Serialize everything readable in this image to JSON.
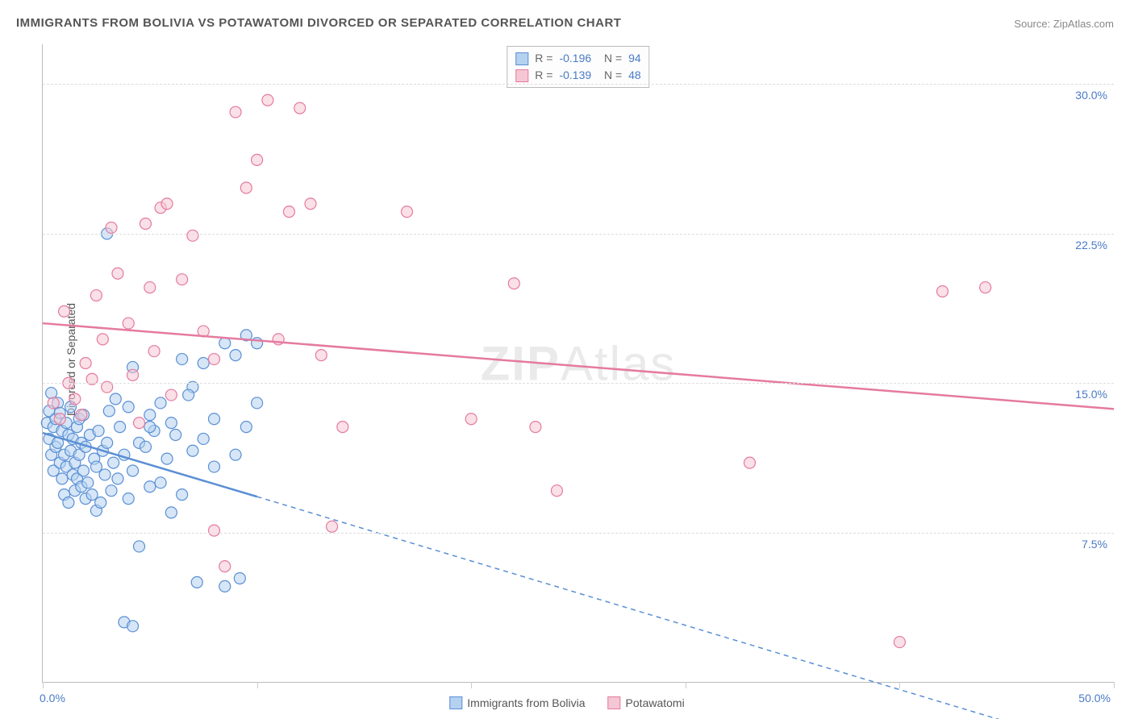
{
  "title": "IMMIGRANTS FROM BOLIVIA VS POTAWATOMI DIVORCED OR SEPARATED CORRELATION CHART",
  "source_label": "Source:",
  "source_name": "ZipAtlas.com",
  "watermark_a": "ZIP",
  "watermark_b": "Atlas",
  "ylabel": "Divorced or Separated",
  "chart": {
    "type": "scatter",
    "xlim": [
      0,
      50
    ],
    "ylim": [
      0,
      32
    ],
    "x_ticks": [
      0,
      10,
      20,
      30,
      40,
      50
    ],
    "y_ticks": [
      7.5,
      15.0,
      22.5,
      30.0
    ],
    "x_tick_labels": {
      "0": "0.0%",
      "50": "50.0%"
    },
    "y_tick_labels": {
      "7.5": "7.5%",
      "15.0": "15.0%",
      "22.5": "22.5%",
      "30.0": "30.0%"
    },
    "grid_color": "#dddddd",
    "axis_color": "#bbbbbb",
    "tick_text_color": "#4a7ac7",
    "background_color": "#ffffff",
    "marker_radius": 7,
    "marker_opacity": 0.55,
    "line_width": 2.5,
    "series": [
      {
        "key": "bolivia",
        "label": "Immigrants from Bolivia",
        "color_fill": "#b4d1f0",
        "color_stroke": "#5a8fd4",
        "R": "-0.196",
        "N": "94",
        "trend": {
          "x1": 0,
          "y1": 12.5,
          "x2_solid": 10,
          "y2_solid": 9.3,
          "x2_dash": 45,
          "y2_dash": -2.0
        },
        "points": [
          [
            0.2,
            13.0
          ],
          [
            0.3,
            12.2
          ],
          [
            0.3,
            13.6
          ],
          [
            0.4,
            11.4
          ],
          [
            0.4,
            14.5
          ],
          [
            0.5,
            12.8
          ],
          [
            0.5,
            10.6
          ],
          [
            0.6,
            13.2
          ],
          [
            0.6,
            11.8
          ],
          [
            0.7,
            14.0
          ],
          [
            0.7,
            12.0
          ],
          [
            0.8,
            11.0
          ],
          [
            0.8,
            13.5
          ],
          [
            0.9,
            10.2
          ],
          [
            0.9,
            12.6
          ],
          [
            1.0,
            11.4
          ],
          [
            1.0,
            9.4
          ],
          [
            1.1,
            13.0
          ],
          [
            1.1,
            10.8
          ],
          [
            1.2,
            12.4
          ],
          [
            1.2,
            9.0
          ],
          [
            1.3,
            11.6
          ],
          [
            1.3,
            13.8
          ],
          [
            1.4,
            10.4
          ],
          [
            1.4,
            12.2
          ],
          [
            1.5,
            11.0
          ],
          [
            1.5,
            9.6
          ],
          [
            1.6,
            12.8
          ],
          [
            1.6,
            10.2
          ],
          [
            1.7,
            13.2
          ],
          [
            1.7,
            11.4
          ],
          [
            1.8,
            9.8
          ],
          [
            1.8,
            12.0
          ],
          [
            1.9,
            10.6
          ],
          [
            1.9,
            13.4
          ],
          [
            2.0,
            11.8
          ],
          [
            2.0,
            9.2
          ],
          [
            2.1,
            10.0
          ],
          [
            2.2,
            12.4
          ],
          [
            2.3,
            9.4
          ],
          [
            2.4,
            11.2
          ],
          [
            2.5,
            10.8
          ],
          [
            2.5,
            8.6
          ],
          [
            2.6,
            12.6
          ],
          [
            2.7,
            9.0
          ],
          [
            2.8,
            11.6
          ],
          [
            2.9,
            10.4
          ],
          [
            3.0,
            22.5
          ],
          [
            3.0,
            12.0
          ],
          [
            3.1,
            13.6
          ],
          [
            3.2,
            9.6
          ],
          [
            3.3,
            11.0
          ],
          [
            3.4,
            14.2
          ],
          [
            3.5,
            10.2
          ],
          [
            3.6,
            12.8
          ],
          [
            3.8,
            11.4
          ],
          [
            4.0,
            13.8
          ],
          [
            4.0,
            9.2
          ],
          [
            4.2,
            15.8
          ],
          [
            4.2,
            10.6
          ],
          [
            4.5,
            12.0
          ],
          [
            4.5,
            6.8
          ],
          [
            4.8,
            11.8
          ],
          [
            5.0,
            13.4
          ],
          [
            5.0,
            9.8
          ],
          [
            5.2,
            12.6
          ],
          [
            5.5,
            14.0
          ],
          [
            5.5,
            10.0
          ],
          [
            5.8,
            11.2
          ],
          [
            6.0,
            13.0
          ],
          [
            6.0,
            8.5
          ],
          [
            6.2,
            12.4
          ],
          [
            6.5,
            16.2
          ],
          [
            6.5,
            9.4
          ],
          [
            7.0,
            11.6
          ],
          [
            7.0,
            14.8
          ],
          [
            7.2,
            5.0
          ],
          [
            7.5,
            12.2
          ],
          [
            7.5,
            16.0
          ],
          [
            8.0,
            13.2
          ],
          [
            8.0,
            10.8
          ],
          [
            8.5,
            17.0
          ],
          [
            8.5,
            4.8
          ],
          [
            9.0,
            11.4
          ],
          [
            9.0,
            16.4
          ],
          [
            9.2,
            5.2
          ],
          [
            9.5,
            17.4
          ],
          [
            9.5,
            12.8
          ],
          [
            10.0,
            17.0
          ],
          [
            10.0,
            14.0
          ],
          [
            3.8,
            3.0
          ],
          [
            5.0,
            12.8
          ],
          [
            6.8,
            14.4
          ],
          [
            4.2,
            2.8
          ]
        ]
      },
      {
        "key": "potawatomi",
        "label": "Potawatomi",
        "color_fill": "#f5c6d4",
        "color_stroke": "#e57aa0",
        "R": "-0.139",
        "N": "48",
        "trend": {
          "x1": 0,
          "y1": 18.0,
          "x2_solid": 50,
          "y2_solid": 13.7,
          "x2_dash": 50,
          "y2_dash": 13.7
        },
        "points": [
          [
            0.5,
            14.0
          ],
          [
            0.8,
            13.2
          ],
          [
            1.0,
            18.6
          ],
          [
            1.2,
            15.0
          ],
          [
            1.5,
            14.2
          ],
          [
            1.8,
            13.4
          ],
          [
            2.0,
            16.0
          ],
          [
            2.3,
            15.2
          ],
          [
            2.5,
            19.4
          ],
          [
            2.8,
            17.2
          ],
          [
            3.0,
            14.8
          ],
          [
            3.2,
            22.8
          ],
          [
            3.5,
            20.5
          ],
          [
            4.0,
            18.0
          ],
          [
            4.2,
            15.4
          ],
          [
            4.5,
            13.0
          ],
          [
            4.8,
            23.0
          ],
          [
            5.0,
            19.8
          ],
          [
            5.2,
            16.6
          ],
          [
            5.5,
            23.8
          ],
          [
            5.8,
            24.0
          ],
          [
            6.0,
            14.4
          ],
          [
            6.5,
            20.2
          ],
          [
            7.0,
            22.4
          ],
          [
            7.5,
            17.6
          ],
          [
            8.0,
            16.2
          ],
          [
            8.5,
            5.8
          ],
          [
            9.0,
            28.6
          ],
          [
            9.5,
            24.8
          ],
          [
            10.0,
            26.2
          ],
          [
            10.5,
            29.2
          ],
          [
            11.0,
            17.2
          ],
          [
            11.5,
            23.6
          ],
          [
            12.0,
            28.8
          ],
          [
            12.5,
            24.0
          ],
          [
            13.0,
            16.4
          ],
          [
            13.5,
            7.8
          ],
          [
            14.0,
            12.8
          ],
          [
            17.0,
            23.6
          ],
          [
            20.0,
            13.2
          ],
          [
            22.0,
            20.0
          ],
          [
            23.0,
            12.8
          ],
          [
            24.0,
            9.6
          ],
          [
            33.0,
            11.0
          ],
          [
            40.0,
            2.0
          ],
          [
            42.0,
            19.6
          ],
          [
            44.0,
            19.8
          ],
          [
            8.0,
            7.6
          ]
        ]
      }
    ]
  }
}
